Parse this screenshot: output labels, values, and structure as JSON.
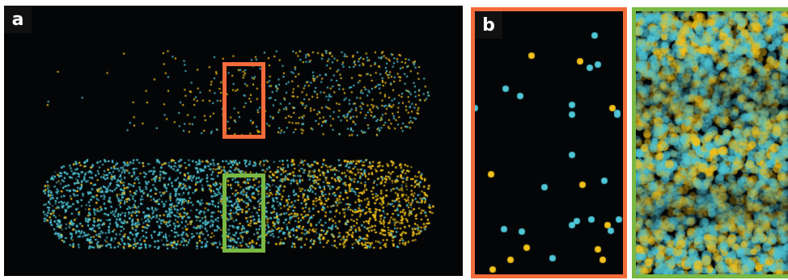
{
  "labels": {
    "panel_a": "a",
    "panel_b": "b"
  },
  "colors": {
    "background": "#040507",
    "cyan": "#4fc6d6",
    "yellow": "#f2c21b",
    "orange_box": "#f26b3a",
    "green_box": "#79b843"
  }
}
